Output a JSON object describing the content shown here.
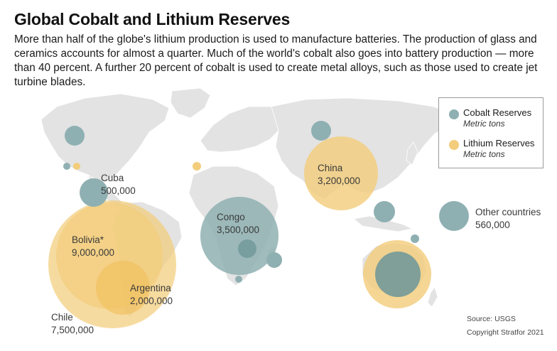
{
  "title": "Global Cobalt and Lithium Reserves",
  "subtitle": "More than half of the globe's lithium production is used to manufacture batteries. The production of glass and ceramics accounts for almost a quarter. Much of the world's cobalt also goes into battery production — more than 40 percent. A further 20 percent of cobalt is used to create metal alloys, such as those used to create jet turbine blades.",
  "colors": {
    "cobalt": "#8fb0b2",
    "lithium": "#f3cd7c",
    "land": "#e3e3e3"
  },
  "legend": {
    "cobalt": {
      "label": "Cobalt Reserves",
      "unit": "Metric tons"
    },
    "lithium": {
      "label": "Lithium Reserves",
      "unit": "Metric tons"
    }
  },
  "labels": {
    "cuba": {
      "name": "Cuba",
      "value": "500,000"
    },
    "china": {
      "name": "China",
      "value": "3,200,000"
    },
    "congo": {
      "name": "Congo",
      "value": "3,500,000"
    },
    "bolivia": {
      "name": "Bolivia*",
      "value": "9,000,000"
    },
    "argentina": {
      "name": "Argentina",
      "value": "2,000,000"
    },
    "chile": {
      "name": "Chile",
      "value": "7,500,000"
    },
    "other": {
      "name": "Other countries",
      "value": "560,000"
    }
  },
  "source": "Source: USGS",
  "copyright": "Copyright Stratfor 2021"
}
